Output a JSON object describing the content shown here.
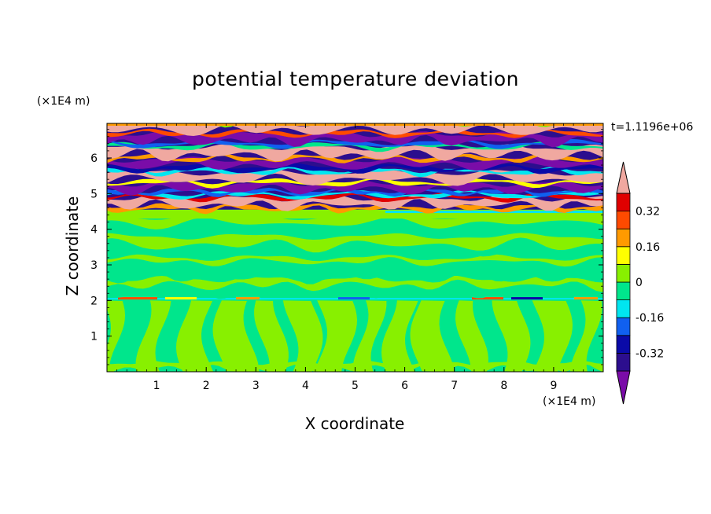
{
  "chart_data": {
    "type": "heatmap",
    "title": "potential temperature deviation",
    "xlabel": "X coordinate",
    "ylabel": "Z coordinate",
    "x_unit": "(×1E4 m)",
    "z_unit": "(×1E4 m)",
    "timestamp": "t=1.1196e+06",
    "xlim": [
      0,
      10
    ],
    "ylim": [
      0,
      6.97
    ],
    "x_ticks": [
      "1",
      "2",
      "3",
      "4",
      "5",
      "6",
      "7",
      "8",
      "9"
    ],
    "y_ticks": [
      "1",
      "2",
      "3",
      "4",
      "5",
      "6"
    ],
    "colorbar": {
      "levels": [
        -0.4,
        -0.32,
        -0.24,
        -0.16,
        -0.08,
        0,
        0.08,
        0.16,
        0.24,
        0.32,
        0.4
      ],
      "labels": [
        "0.32",
        "0.16",
        "0",
        "-0.16",
        "-0.32"
      ],
      "label_values": [
        0.32,
        0.16,
        0,
        -0.16,
        -0.32
      ],
      "colors_low_to_high": [
        "#7a0ca8",
        "#2c0e8e",
        "#0a0aa8",
        "#1060f0",
        "#00e6f0",
        "#00e68c",
        "#88f000",
        "#ffff00",
        "#ff9a00",
        "#ff4a00",
        "#e00000",
        "#f0a8a0"
      ]
    },
    "regions": [
      {
        "name": "lower layer",
        "z_range": [
          0,
          2.1
        ],
        "dominant_values": [
          0,
          0.04
        ],
        "pattern": "wavy columns of slightly positive and near-zero deviation"
      },
      {
        "name": "inversion line",
        "z": 2.05,
        "pattern": "thin band with alternating warm and cold streaks"
      },
      {
        "name": "middle layer",
        "z_range": [
          2.1,
          4.5
        ],
        "dominant_values": [
          0,
          0.04
        ],
        "pattern": "horizontal streaks of near-zero and slightly positive deviation"
      },
      {
        "name": "upper layer",
        "z_range": [
          4.5,
          6.97
        ],
        "dominant_values": [
          -0.4,
          0.4
        ],
        "pattern": "strong alternating warm and cold horizontal bands"
      }
    ]
  }
}
